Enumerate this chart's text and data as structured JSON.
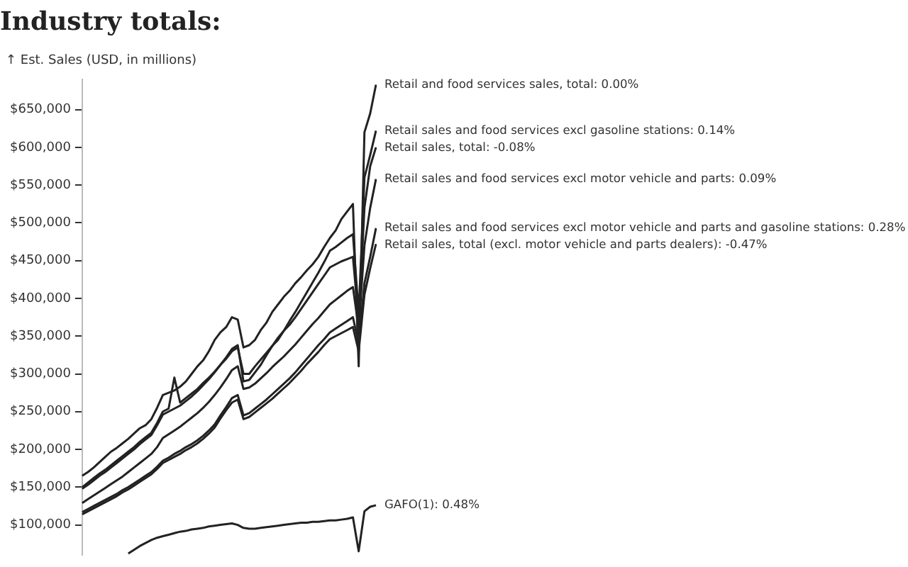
{
  "chart_data": {
    "type": "line",
    "title": "Industry totals:",
    "ylabel": "↑ Est. Sales (USD, in millions)",
    "categories": [
      null,
      null,
      null,
      null,
      null,
      null,
      null,
      null,
      null,
      null,
      null,
      null,
      null,
      null,
      null,
      null,
      null,
      null,
      null,
      null,
      null,
      null,
      null,
      null,
      null,
      null,
      null,
      null,
      null,
      null,
      null,
      null,
      null,
      null,
      null,
      null,
      null,
      null,
      null,
      null,
      null,
      null,
      null,
      null,
      null,
      null,
      null,
      null,
      null,
      null,
      null,
      null
    ],
    "ylim": [
      60000,
      690000
    ],
    "yticks": [
      {
        "value": 100000,
        "label": "$100,000"
      },
      {
        "value": 150000,
        "label": "$150,000"
      },
      {
        "value": 200000,
        "label": "$200,000"
      },
      {
        "value": 250000,
        "label": "$250,000"
      },
      {
        "value": 300000,
        "label": "$300,000"
      },
      {
        "value": 350000,
        "label": "$350,000"
      },
      {
        "value": 400000,
        "label": "$400,000"
      },
      {
        "value": 450000,
        "label": "$450,000"
      },
      {
        "value": 500000,
        "label": "$500,000"
      },
      {
        "value": 550000,
        "label": "$550,000"
      },
      {
        "value": 600000,
        "label": "$600,000"
      },
      {
        "value": 650000,
        "label": "$650,000"
      }
    ],
    "legend": false,
    "series": [
      {
        "name": "Retail and food services sales, total: 0.00%",
        "color": "#222222",
        "values": [
          165000,
          170000,
          176000,
          183000,
          190000,
          197000,
          202000,
          208000,
          214000,
          221000,
          228000,
          232000,
          240000,
          255000,
          272000,
          275000,
          278000,
          283000,
          290000,
          300000,
          310000,
          318000,
          330000,
          345000,
          355000,
          362000,
          375000,
          372000,
          335000,
          338000,
          345000,
          358000,
          368000,
          382000,
          392000,
          402000,
          410000,
          420000,
          428000,
          437000,
          445000,
          455000,
          468000,
          480000,
          490000,
          505000,
          515000,
          525000,
          310000,
          620000,
          645000,
          683000
        ]
      },
      {
        "name": "Retail sales and food services excl gasoline stations: 0.14%",
        "color": "#222222",
        "values": [
          150000,
          156000,
          162000,
          168000,
          173000,
          179000,
          185000,
          191000,
          197000,
          203000,
          210000,
          216000,
          222000,
          235000,
          250000,
          254000,
          295000,
          262000,
          268000,
          274000,
          280000,
          288000,
          295000,
          303000,
          312000,
          320000,
          330000,
          335000,
          300000,
          300000,
          310000,
          319000,
          328000,
          337000,
          345000,
          357000,
          370000,
          382000,
          395000,
          408000,
          421000,
          434000,
          448000,
          463000,
          468000,
          474000,
          480000,
          485000,
          380000,
          560000,
          590000,
          622000
        ]
      },
      {
        "name": "Retail sales, total: -0.08%",
        "color": "#222222",
        "values": [
          148000,
          153000,
          159000,
          165000,
          170000,
          176000,
          182000,
          188000,
          194000,
          200000,
          207000,
          213000,
          219000,
          232000,
          246000,
          250000,
          254000,
          258000,
          264000,
          270000,
          277000,
          285000,
          293000,
          302000,
          312000,
          322000,
          333000,
          338000,
          290000,
          292000,
          302000,
          312000,
          325000,
          337000,
          348000,
          357000,
          365000,
          375000,
          386000,
          397000,
          408000,
          419000,
          430000,
          441000,
          445000,
          449000,
          452000,
          455000,
          370000,
          520000,
          575000,
          600000
        ]
      },
      {
        "name": "Retail sales and food services excl motor vehicle and parts: 0.09%",
        "color": "#222222",
        "values": [
          129000,
          134000,
          139000,
          144000,
          149000,
          154000,
          159000,
          164000,
          170000,
          176000,
          182000,
          188000,
          194000,
          203000,
          215000,
          220000,
          225000,
          230000,
          236000,
          242000,
          248000,
          255000,
          263000,
          272000,
          282000,
          293000,
          305000,
          310000,
          280000,
          282000,
          287000,
          294000,
          301000,
          309000,
          316000,
          323000,
          331000,
          339000,
          348000,
          357000,
          366000,
          374000,
          383000,
          392000,
          398000,
          404000,
          410000,
          415000,
          360000,
          470000,
          520000,
          558000
        ]
      },
      {
        "name": "Retail sales and food services excl motor vehicle and parts and gasoline stations: 0.28%",
        "color": "#222222",
        "values": [
          117000,
          121000,
          125000,
          129000,
          133000,
          137000,
          141000,
          146000,
          150000,
          155000,
          160000,
          165000,
          170000,
          177000,
          185000,
          189000,
          194000,
          198000,
          203000,
          207000,
          212000,
          218000,
          225000,
          233000,
          245000,
          256000,
          268000,
          272000,
          245000,
          248000,
          254000,
          260000,
          266000,
          273000,
          280000,
          287000,
          294000,
          302000,
          311000,
          320000,
          329000,
          338000,
          346000,
          355000,
          360000,
          365000,
          370000,
          375000,
          340000,
          420000,
          455000,
          493000
        ]
      },
      {
        "name": "Retail sales, total (excl. motor vehicle and parts dealers): -0.47%",
        "color": "#222222",
        "values": [
          114000,
          118000,
          122000,
          126000,
          130000,
          134000,
          138000,
          143000,
          147000,
          152000,
          157000,
          162000,
          167000,
          174000,
          182000,
          186000,
          190000,
          194000,
          199000,
          203000,
          208000,
          214000,
          221000,
          229000,
          241000,
          252000,
          262000,
          266000,
          240000,
          243000,
          249000,
          255000,
          261000,
          267000,
          274000,
          281000,
          288000,
          296000,
          304000,
          313000,
          321000,
          329000,
          338000,
          346000,
          350000,
          354000,
          358000,
          362000,
          330000,
          405000,
          440000,
          472000
        ]
      },
      {
        "name": "GAFO(1): 0.48%",
        "color": "#222222",
        "values": [
          null,
          null,
          null,
          null,
          null,
          null,
          null,
          null,
          62000,
          67000,
          72000,
          76000,
          80000,
          83000,
          85000,
          87000,
          89000,
          91000,
          92000,
          94000,
          95000,
          96000,
          98000,
          99000,
          100000,
          101000,
          102000,
          100000,
          96000,
          95000,
          95000,
          96000,
          97000,
          98000,
          99000,
          100000,
          101000,
          102000,
          103000,
          103000,
          104000,
          104000,
          105000,
          106000,
          106000,
          107000,
          108000,
          110000,
          65000,
          118000,
          124000,
          126000
        ]
      }
    ]
  }
}
